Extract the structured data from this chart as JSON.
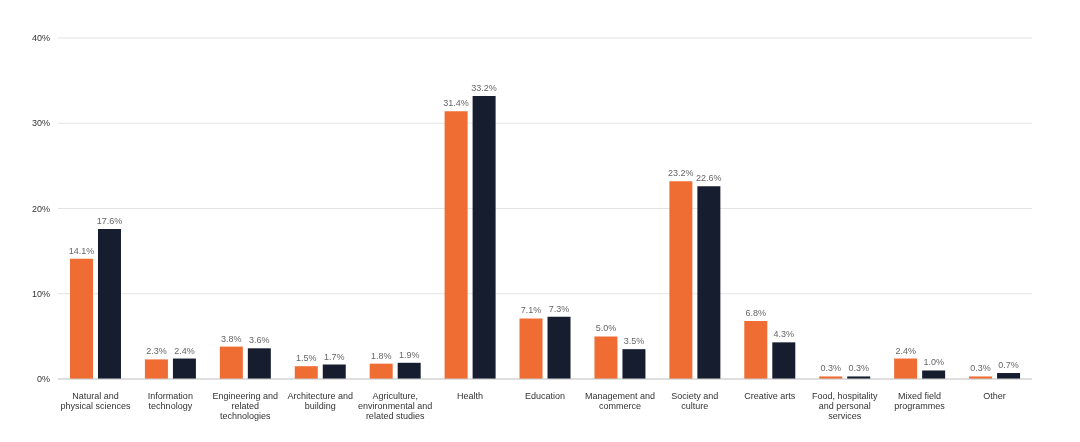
{
  "chart_data": {
    "type": "bar",
    "categories": [
      "Natural and physical sciences",
      "Information technology",
      "Engineering and related technologies",
      "Architecture and building",
      "Agriculture, environmental and related studies",
      "Health",
      "Education",
      "Management and commerce",
      "Society and culture",
      "Creative arts",
      "Food, hospitality and personal services",
      "Mixed field programmes",
      "Other"
    ],
    "series": [
      {
        "color": "#ef6c33",
        "values": [
          14.1,
          2.3,
          3.8,
          1.5,
          1.8,
          31.4,
          7.1,
          5.0,
          23.2,
          6.8,
          0.3,
          2.4,
          0.3
        ],
        "value_labels": [
          "14.1%",
          "2.3%",
          "3.8%",
          "1.5%",
          "1.8%",
          "31.4%",
          "7.1%",
          "5.0%",
          "23.2%",
          "6.8%",
          "0.3%",
          "2.4%",
          "0.3%"
        ]
      },
      {
        "color": "#161d2e",
        "values": [
          17.6,
          2.4,
          3.6,
          1.7,
          1.9,
          33.2,
          7.3,
          3.5,
          22.6,
          4.3,
          0.3,
          1.0,
          0.7
        ],
        "value_labels": [
          "17.6%",
          "2.4%",
          "3.6%",
          "1.7%",
          "1.9%",
          "33.2%",
          "7.3%",
          "3.5%",
          "22.6%",
          "4.3%",
          "0.3%",
          "1.0%",
          "0.7%"
        ]
      }
    ],
    "ylim": [
      0,
      40
    ],
    "yticks": [
      {
        "value": 0,
        "label": "0%"
      },
      {
        "value": 10,
        "label": "10%"
      },
      {
        "value": 20,
        "label": "20%"
      },
      {
        "value": 30,
        "label": "30%"
      },
      {
        "value": 40,
        "label": "40%"
      }
    ],
    "grid": "y",
    "legend": false
  }
}
